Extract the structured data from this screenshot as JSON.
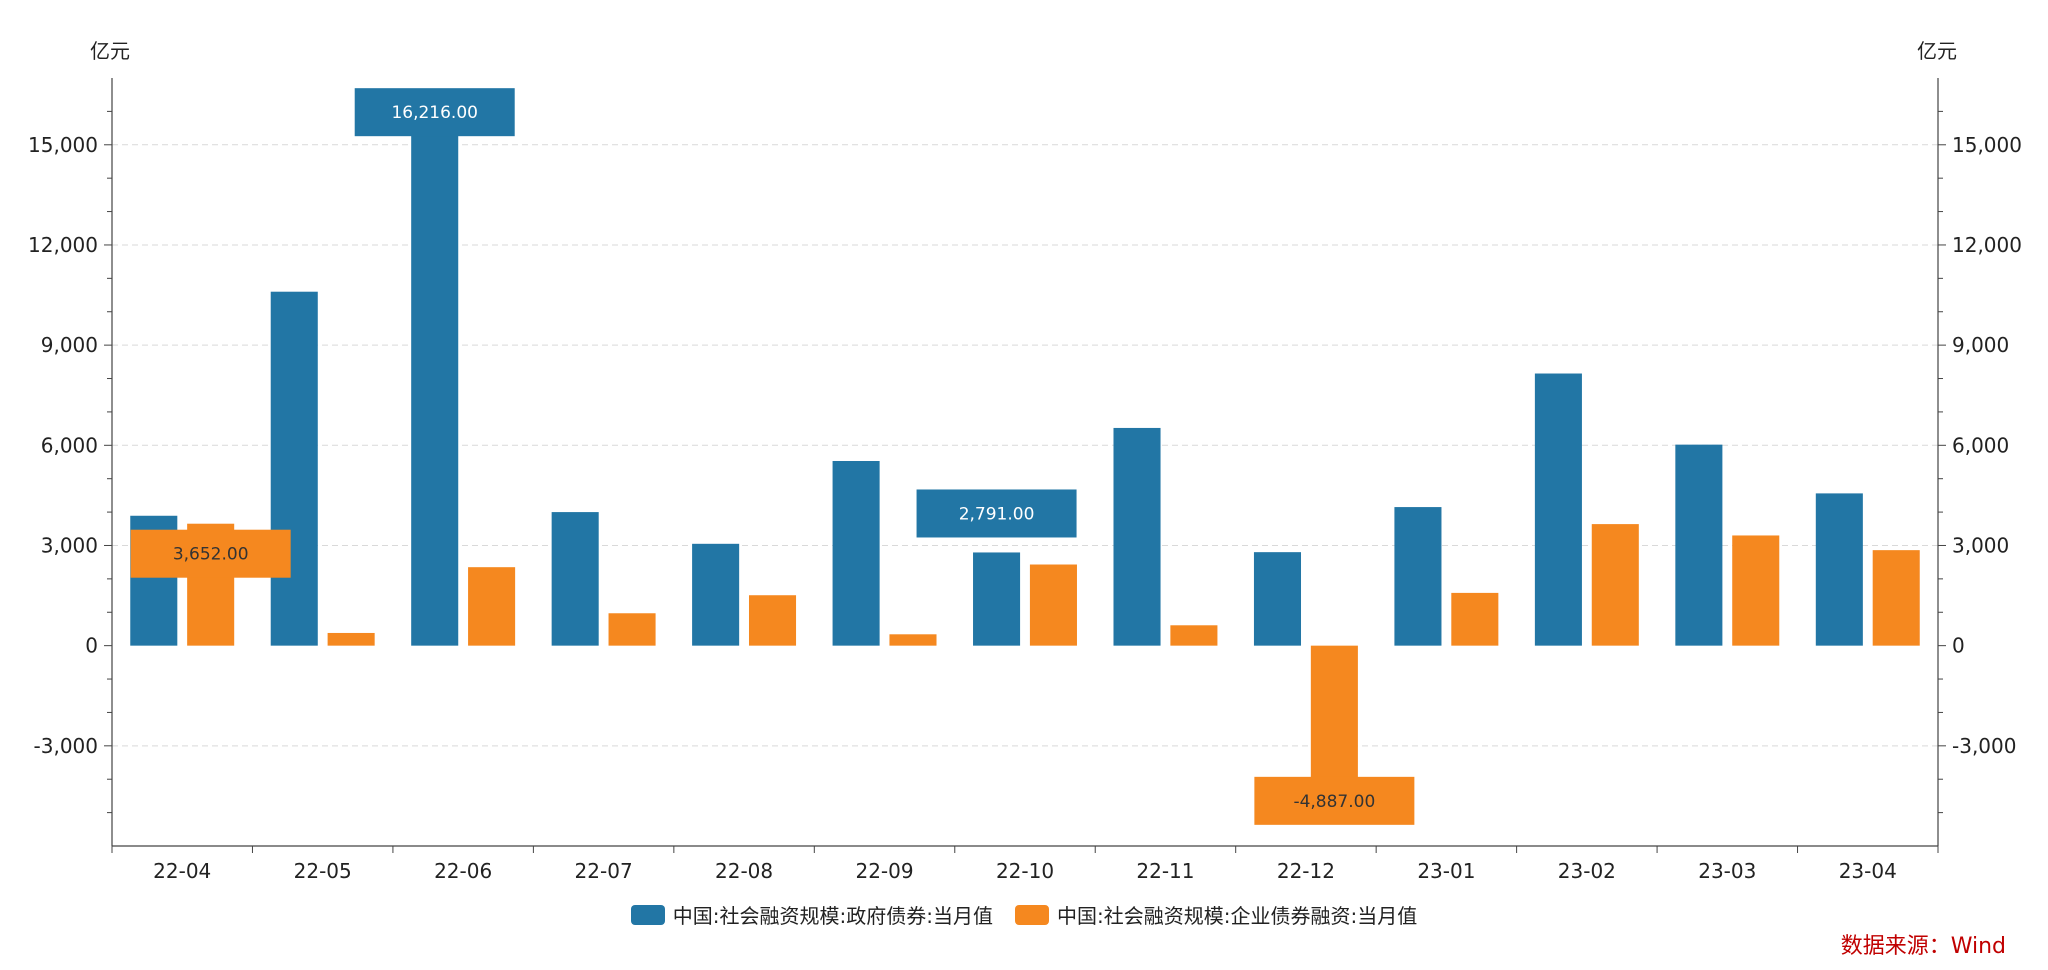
{
  "chart_data": {
    "type": "bar",
    "categories": [
      "22-04",
      "22-05",
      "22-06",
      "22-07",
      "22-08",
      "22-09",
      "22-10",
      "22-11",
      "22-12",
      "23-01",
      "23-02",
      "23-03",
      "23-04"
    ],
    "series": [
      {
        "name": "中国:社会融资规模:政府债券:当月值",
        "color": "#2276a5",
        "values": [
          3890,
          10600,
          16216,
          4000,
          3050,
          5530,
          2791,
          6520,
          2800,
          4150,
          8150,
          6020,
          4560
        ]
      },
      {
        "name": "中国:社会融资规模:企业债券融资:当月值",
        "color": "#f5881f",
        "values": [
          3652,
          380,
          2350,
          970,
          1510,
          340,
          2430,
          610,
          -4887,
          1580,
          3640,
          3300,
          2860
        ]
      }
    ],
    "callouts": [
      {
        "series": 0,
        "index": 2,
        "text": "16,216.00"
      },
      {
        "series": 1,
        "index": 0,
        "text": "3,652.00"
      },
      {
        "series": 0,
        "index": 6,
        "text": "2,791.00"
      },
      {
        "series": 1,
        "index": 8,
        "text": "-4,887.00"
      }
    ],
    "ylim": [
      -6000,
      17000
    ],
    "yticks": [
      -3000,
      0,
      3000,
      6000,
      9000,
      12000,
      15000
    ],
    "ytick_labels": [
      "-3,000",
      "0",
      "3,000",
      "6,000",
      "9,000",
      "12,000",
      "15,000"
    ],
    "y_unit_left": "亿元",
    "y_unit_right": "亿元",
    "grid": true,
    "legend_position": "bottom-center"
  },
  "source_note": "数据来源：Wind"
}
